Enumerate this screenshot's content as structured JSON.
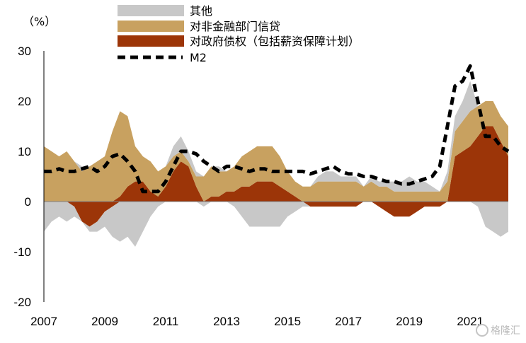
{
  "chart_data": {
    "type": "area",
    "unit_label": "（%）",
    "watermark": "格隆汇",
    "ylim": [
      -20,
      30
    ],
    "y_ticks": [
      "30",
      "20",
      "10",
      "0",
      "-10",
      "-20"
    ],
    "xlim": [
      2007.0,
      2022.25
    ],
    "x_ticks": [
      "2007",
      "2009",
      "2011",
      "2013",
      "2015",
      "2017",
      "2019",
      "2021"
    ],
    "legend_placement": "top",
    "colors": {
      "other": "#c8c8c8",
      "nonfin": "#c8a160",
      "gov": "#9c3508",
      "m2": "#000000"
    },
    "series": [
      {
        "name": "其他",
        "type": "area",
        "x": [
          2007.0,
          2007.25,
          2007.5,
          2007.75,
          2008.0,
          2008.25,
          2008.5,
          2008.75,
          2009.0,
          2009.25,
          2009.5,
          2009.75,
          2010.0,
          2010.25,
          2010.5,
          2010.75,
          2011.0,
          2011.25,
          2011.5,
          2011.75,
          2012.0,
          2012.25,
          2012.5,
          2012.75,
          2013.0,
          2013.25,
          2013.5,
          2013.75,
          2014.0,
          2014.25,
          2014.5,
          2014.75,
          2015.0,
          2015.25,
          2015.5,
          2015.75,
          2016.0,
          2016.25,
          2016.5,
          2016.75,
          2017.0,
          2017.25,
          2017.5,
          2017.75,
          2018.0,
          2018.25,
          2018.5,
          2018.75,
          2019.0,
          2019.25,
          2019.5,
          2019.75,
          2020.0,
          2020.25,
          2020.5,
          2020.75,
          2021.0,
          2021.25,
          2021.5,
          2021.75,
          2022.0,
          2022.25
        ],
        "values": [
          -6,
          -4,
          -3,
          -4,
          -2,
          1,
          -1,
          -2,
          -3,
          -6,
          -8,
          -7,
          -9,
          -6,
          -3,
          -1,
          0,
          2,
          3,
          2,
          1,
          -1,
          0,
          1,
          0,
          -1,
          -3,
          -5,
          -5,
          -5,
          -5,
          -5,
          -3,
          -2,
          -1,
          0,
          1,
          2,
          2,
          1,
          1,
          1,
          0,
          1,
          1,
          1,
          2,
          2,
          3,
          2,
          2,
          1,
          0,
          2,
          3,
          4,
          6,
          -1,
          -5,
          -6,
          -7,
          -6
        ]
      },
      {
        "name": "对非金融部门信贷",
        "type": "area",
        "x": [
          2007.0,
          2007.25,
          2007.5,
          2007.75,
          2008.0,
          2008.25,
          2008.5,
          2008.75,
          2009.0,
          2009.25,
          2009.5,
          2009.75,
          2010.0,
          2010.25,
          2010.5,
          2010.75,
          2011.0,
          2011.25,
          2011.5,
          2011.75,
          2012.0,
          2012.25,
          2012.5,
          2012.75,
          2013.0,
          2013.25,
          2013.5,
          2013.75,
          2014.0,
          2014.25,
          2014.5,
          2014.75,
          2015.0,
          2015.25,
          2015.5,
          2015.75,
          2016.0,
          2016.25,
          2016.5,
          2016.75,
          2017.0,
          2017.25,
          2017.5,
          2017.75,
          2018.0,
          2018.25,
          2018.5,
          2018.75,
          2019.0,
          2019.25,
          2019.5,
          2019.75,
          2020.0,
          2020.25,
          2020.5,
          2020.75,
          2021.0,
          2021.25,
          2021.5,
          2021.75,
          2022.0,
          2022.25
        ],
        "values": [
          11,
          10,
          9,
          10,
          8,
          6,
          7,
          8,
          9,
          14,
          17,
          14,
          7,
          5,
          6,
          5,
          4,
          3,
          2,
          1,
          2,
          5,
          6,
          5,
          4,
          5,
          6,
          7,
          7,
          7,
          7,
          6,
          4,
          3,
          3,
          3,
          4,
          4,
          4,
          4,
          4,
          4,
          3,
          4,
          3,
          3,
          2,
          2,
          2,
          2,
          2,
          2,
          2,
          4,
          5,
          6,
          7,
          6,
          5,
          5,
          5,
          6
        ]
      },
      {
        "name": "对政府债权（包括薪资保障计划）",
        "type": "area",
        "x": [
          2007.0,
          2007.25,
          2007.5,
          2007.75,
          2008.0,
          2008.25,
          2008.5,
          2008.75,
          2009.0,
          2009.25,
          2009.5,
          2009.75,
          2010.0,
          2010.25,
          2010.5,
          2010.75,
          2011.0,
          2011.25,
          2011.5,
          2011.75,
          2012.0,
          2012.25,
          2012.5,
          2012.75,
          2013.0,
          2013.25,
          2013.5,
          2013.75,
          2014.0,
          2014.25,
          2014.5,
          2014.75,
          2015.0,
          2015.25,
          2015.5,
          2015.75,
          2016.0,
          2016.25,
          2016.5,
          2016.75,
          2017.0,
          2017.25,
          2017.5,
          2017.75,
          2018.0,
          2018.25,
          2018.5,
          2018.75,
          2019.0,
          2019.25,
          2019.5,
          2019.75,
          2020.0,
          2020.25,
          2020.5,
          2020.75,
          2021.0,
          2021.25,
          2021.5,
          2021.75,
          2022.0,
          2022.25
        ],
        "values": [
          0,
          0,
          0,
          0,
          -1,
          -4,
          -5,
          -4,
          -2,
          -1,
          1,
          3,
          4,
          4,
          2,
          1,
          3,
          6,
          8,
          7,
          3,
          0,
          1,
          1,
          2,
          2,
          3,
          3,
          4,
          4,
          4,
          3,
          2,
          1,
          0,
          -1,
          -1,
          -1,
          -1,
          -1,
          -1,
          -1,
          0,
          0,
          -1,
          -2,
          -3,
          -3,
          -3,
          -2,
          -1,
          -1,
          -1,
          0,
          9,
          10,
          11,
          13,
          15,
          15,
          12,
          9
        ]
      },
      {
        "name": "M2",
        "type": "line",
        "style": "dashed",
        "x": [
          2007.0,
          2007.25,
          2007.5,
          2007.75,
          2008.0,
          2008.25,
          2008.5,
          2008.75,
          2009.0,
          2009.25,
          2009.5,
          2009.75,
          2010.0,
          2010.25,
          2010.5,
          2010.75,
          2011.0,
          2011.25,
          2011.5,
          2011.75,
          2012.0,
          2012.25,
          2012.5,
          2012.75,
          2013.0,
          2013.25,
          2013.5,
          2013.75,
          2014.0,
          2014.25,
          2014.5,
          2014.75,
          2015.0,
          2015.25,
          2015.5,
          2015.75,
          2016.0,
          2016.25,
          2016.5,
          2016.75,
          2017.0,
          2017.25,
          2017.5,
          2017.75,
          2018.0,
          2018.25,
          2018.5,
          2018.75,
          2019.0,
          2019.25,
          2019.5,
          2019.75,
          2020.0,
          2020.25,
          2020.5,
          2020.75,
          2021.0,
          2021.25,
          2021.5,
          2021.75,
          2022.0,
          2022.25
        ],
        "values": [
          6,
          6,
          6.5,
          6,
          6,
          6.5,
          7,
          6,
          7,
          9,
          9.5,
          8,
          6,
          2,
          2,
          2,
          4,
          7,
          10,
          10,
          9.5,
          8,
          7,
          6,
          7,
          7,
          6.5,
          6,
          6.5,
          6.5,
          6,
          6,
          6,
          6,
          6,
          5.5,
          6,
          6.5,
          7,
          6,
          5.5,
          5.5,
          5,
          5,
          4.5,
          4,
          4,
          3.5,
          3.5,
          4,
          4.5,
          5,
          7,
          15,
          23,
          24,
          27,
          20,
          13,
          13,
          11,
          10
        ]
      }
    ]
  }
}
